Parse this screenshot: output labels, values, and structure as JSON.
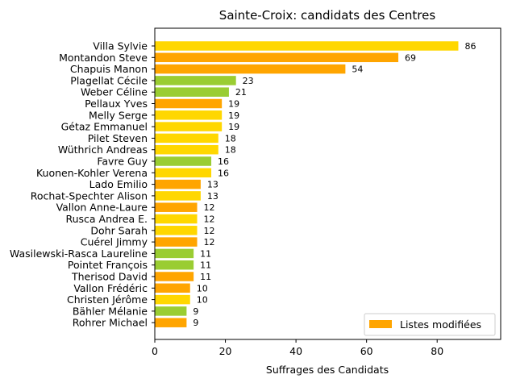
{
  "chart_data": {
    "type": "bar",
    "orientation": "horizontal",
    "title": "Sainte-Croix: candidats des Centres",
    "xlabel": "Suffrages des Candidats",
    "ylabel": "",
    "xlim": [
      0,
      98
    ],
    "xticks": [
      "0",
      "20",
      "40",
      "60",
      "80"
    ],
    "grid": false,
    "legend": {
      "label": "Listes modifiées",
      "placement": "lower-right",
      "color": "#ffa500"
    },
    "colors": {
      "gold": "#ffd700",
      "orange": "#ffa500",
      "green": "#9acd32"
    },
    "categories": [
      "Villa Sylvie",
      "Montandon Steve",
      "Chapuis Manon",
      "Plagellat Cécile",
      "Weber Céline",
      "Pellaux Yves",
      "Melly Serge",
      "Gétaz Emmanuel",
      "Pilet Steven",
      "Wüthrich Andreas",
      "Favre Guy",
      "Kuonen-Kohler Verena",
      "Lado Emilio",
      "Rochat-Spechter Alison",
      "Vallon Anne-Laure",
      "Rusca Andrea E.",
      "Dohr Sarah",
      "Cuérel Jimmy",
      "Wasilewski-Rasca Laureline",
      "Pointet François",
      "Therisod David",
      "Vallon Frédéric",
      "Christen Jérôme",
      "Bähler Mélanie",
      "Rohrer Michael"
    ],
    "values": [
      86,
      69,
      54,
      23,
      21,
      19,
      19,
      19,
      18,
      18,
      16,
      16,
      13,
      13,
      12,
      12,
      12,
      12,
      11,
      11,
      11,
      10,
      10,
      9,
      9
    ],
    "bar_colors": [
      "#ffd700",
      "#ffa500",
      "#ffa500",
      "#9acd32",
      "#9acd32",
      "#ffa500",
      "#ffd700",
      "#ffd700",
      "#ffd700",
      "#ffd700",
      "#9acd32",
      "#ffd700",
      "#ffa500",
      "#ffd700",
      "#ffa500",
      "#ffd700",
      "#ffd700",
      "#ffa500",
      "#9acd32",
      "#9acd32",
      "#ffa500",
      "#ffa500",
      "#ffd700",
      "#9acd32",
      "#ffa500"
    ]
  }
}
